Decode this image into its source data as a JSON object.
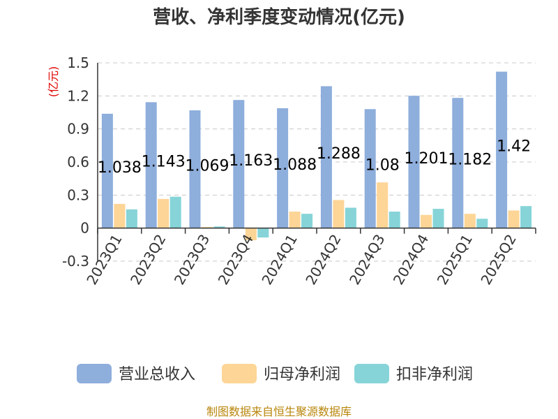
{
  "chart_data": {
    "type": "bar",
    "title": "营收、净利季度变动情况(亿元)",
    "unit_label": "(亿元)",
    "categories": [
      "2023Q1",
      "2023Q2",
      "2023Q3",
      "2023Q4",
      "2024Q1",
      "2024Q2",
      "2024Q3",
      "2024Q4",
      "2025Q1",
      "2025Q2"
    ],
    "series": [
      {
        "name": "营业总收入",
        "color": "#8eaedc",
        "values": [
          1.038,
          1.143,
          1.069,
          1.163,
          1.088,
          1.288,
          1.08,
          1.201,
          1.182,
          1.42
        ]
      },
      {
        "name": "归母净利润",
        "color": "#fdd596",
        "values": [
          0.22,
          0.265,
          0.01,
          -0.11,
          0.15,
          0.255,
          0.415,
          0.12,
          0.13,
          0.16
        ]
      },
      {
        "name": "扣非净利润",
        "color": "#86d4d8",
        "values": [
          0.17,
          0.285,
          0.015,
          -0.085,
          0.13,
          0.185,
          0.15,
          0.175,
          0.085,
          0.2
        ]
      }
    ],
    "data_labels": [
      "1.038",
      "1.143",
      "1.069",
      "1.163",
      "1.088",
      "1.288",
      "1.08",
      "1.201",
      "1.182",
      "1.42"
    ],
    "yticks": [
      "1.5",
      "1.2",
      "0.9",
      "0.6",
      "0.3",
      "0",
      "-0.3"
    ],
    "ylim": [
      -0.3,
      1.5
    ],
    "grid": true,
    "legend_position": "bottom"
  },
  "footer": {
    "source": "制图数据来自恒生聚源数据库"
  }
}
